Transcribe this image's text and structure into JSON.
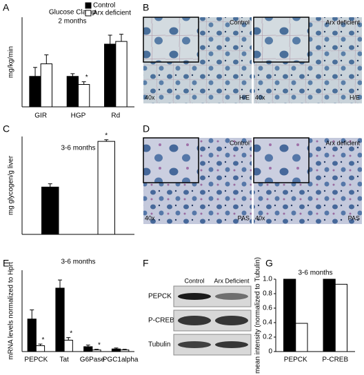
{
  "panel_letters": [
    "A",
    "B",
    "C",
    "D",
    "E",
    "F",
    "G"
  ],
  "micrographs": [
    {
      "condition": "Control",
      "magnification": "40x",
      "stain": "H/E"
    },
    {
      "condition": "Arx deficient",
      "magnification": "40x",
      "stain": "H/E"
    },
    {
      "condition": "Control",
      "magnification": "40x",
      "stain": "PAS"
    },
    {
      "condition": "Arx deficient",
      "magnification": "40x",
      "stain": "PAS"
    }
  ],
  "blot": {
    "columns": [
      "Control",
      "Arx Deficient"
    ],
    "rows": [
      "PEPCK",
      "P-CREB",
      "Tubulin"
    ]
  },
  "chart_data": [
    {
      "type": "bar",
      "title": "Glucose Clamp",
      "subtitle": "2 months",
      "ylabel": "mg/kg/min",
      "categories": [
        "GIR",
        "HGP",
        "Rd"
      ],
      "ylim": [
        0,
        100
      ],
      "legend": "top-right",
      "series": [
        {
          "name": "Control",
          "color": "#000000",
          "values": [
            34,
            34,
            70
          ],
          "errors": [
            10,
            3,
            10
          ],
          "annotations": [
            null,
            null,
            null
          ]
        },
        {
          "name": "Arx deficient",
          "color": "#ffffff",
          "values": [
            48,
            25,
            73
          ],
          "errors": [
            10,
            3,
            8
          ],
          "annotations": [
            null,
            "*",
            null
          ]
        }
      ]
    },
    {
      "type": "bar",
      "title": "3-6 months",
      "ylabel": "mg glycogen/g liver",
      "categories": [
        null,
        null
      ],
      "ylim": [
        0,
        30
      ],
      "series": [
        {
          "color": "#000000",
          "values": [
            14.5,
            null
          ],
          "errors": [
            1,
            null
          ],
          "annotations": [
            null,
            null
          ]
        },
        {
          "color": "#ffffff",
          "values": [
            null,
            28.5
          ],
          "errors": [
            null,
            0.5
          ],
          "annotations": [
            null,
            "*"
          ]
        }
      ]
    },
    {
      "type": "bar",
      "title": "3-6 months",
      "ylabel": "mRNA levels normalized to Hprt",
      "categories": [
        "PEPCK",
        "Tat",
        "G6Pase",
        "PGC1alpha"
      ],
      "ylim": [
        0,
        250
      ],
      "series": [
        {
          "color": "#000000",
          "values": [
            100,
            195,
            15,
            8
          ],
          "errors": [
            28,
            25,
            5,
            3
          ],
          "annotations": [
            null,
            null,
            null,
            null
          ]
        },
        {
          "color": "#ffffff",
          "values": [
            18,
            35,
            5,
            5
          ],
          "errors": [
            5,
            8,
            2,
            2
          ],
          "annotations": [
            "*",
            "*",
            "*",
            null
          ]
        }
      ]
    },
    {
      "type": "bar",
      "title": "3-6 months",
      "ylabel": "mean intensity (normalized to Tubulin)",
      "categories": [
        "PEPCK",
        "P-CREB"
      ],
      "ylim": [
        0,
        1
      ],
      "yticks": [
        0,
        0.2,
        0.4,
        0.6,
        0.8,
        {
          "value": 1,
          "label": "1.0"
        }
      ],
      "series": [
        {
          "color": "#000000",
          "values": [
            1,
            1
          ]
        },
        {
          "color": "#ffffff",
          "values": [
            0.39,
            0.93
          ]
        }
      ]
    }
  ]
}
